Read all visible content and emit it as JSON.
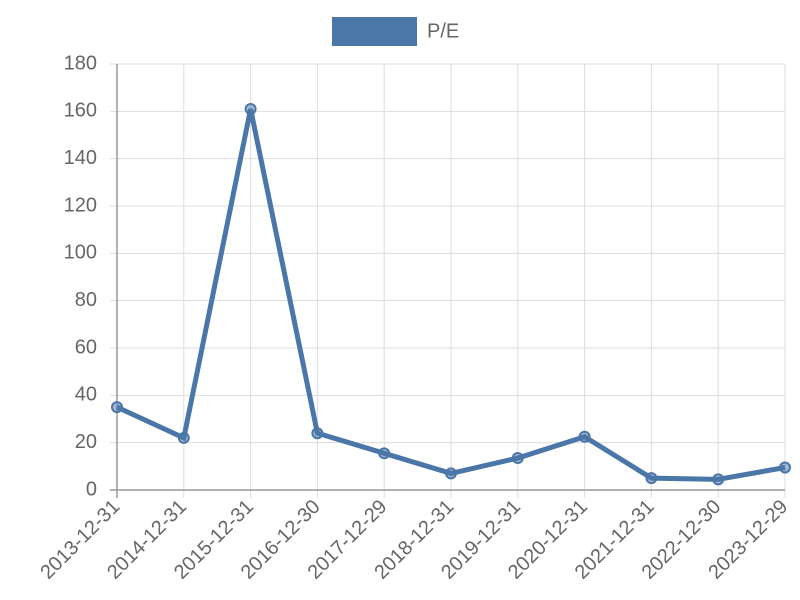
{
  "chart_data": {
    "type": "line",
    "categories": [
      "2013-12-31",
      "2014-12-31",
      "2015-12-31",
      "2016-12-30",
      "2017-12-29",
      "2018-12-31",
      "2019-12-31",
      "2020-12-31",
      "2021-12-31",
      "2022-12-30",
      "2023-12-29"
    ],
    "series": [
      {
        "name": "P/E",
        "color": "#4a76a8",
        "values": [
          35,
          22,
          161,
          24,
          15.5,
          7,
          13.5,
          22.5,
          5,
          4.5,
          9.5
        ]
      }
    ],
    "ylim": [
      0,
      180
    ],
    "yticks": [
      0,
      20,
      40,
      60,
      80,
      100,
      120,
      140,
      160,
      180
    ],
    "grid": true,
    "legend": "top"
  }
}
